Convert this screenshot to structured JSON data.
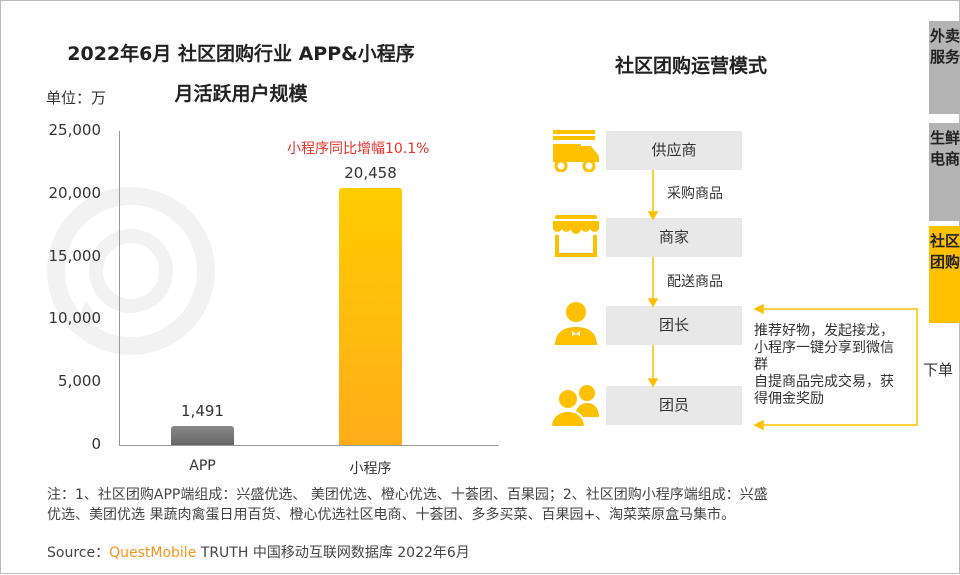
{
  "chart_data": {
    "type": "bar",
    "title": "2022年6月 社区团购行业 APP&小程序 月活跃用户规模",
    "title_lines": [
      "2022年6月 社区团购行业 APP&小程序",
      "月活跃用户规模"
    ],
    "unit_label": "单位：万",
    "categories": [
      "APP",
      "小程序"
    ],
    "values": [
      1491,
      20458
    ],
    "value_labels": [
      "1,491",
      "20,458"
    ],
    "ylim": [
      0,
      25000
    ],
    "yticks": [
      "0",
      "5,000",
      "10,000",
      "15,000",
      "20,000",
      "25,000"
    ],
    "annotation": "小程序同比增幅10.1%",
    "grid": false,
    "colors": {
      "APP": "#7a7a7a",
      "小程序": "#ffc000"
    }
  },
  "flow": {
    "title": "社区团购运营模式",
    "nodes": [
      {
        "label": "供应商",
        "icon": "truck-icon"
      },
      {
        "label": "商家",
        "icon": "store-icon"
      },
      {
        "label": "团长",
        "icon": "person-icon"
      },
      {
        "label": "团员",
        "icon": "group-icon"
      }
    ],
    "edges": [
      "采购商品",
      "配送商品"
    ],
    "feedback_text": [
      "推荐好物，发起接龙，",
      "小程序一键分享到微信",
      "群",
      "自提商品完成交易，获",
      "得佣金奖励"
    ],
    "order_label": "下单",
    "accent": "#ffc000"
  },
  "side_tabs": [
    {
      "label": "外卖服务",
      "active": false
    },
    {
      "label": "生鲜电商",
      "active": false
    },
    {
      "label": "社区团购",
      "active": true
    }
  ],
  "watermark": "QUESTMOBILE",
  "note": [
    "注：1、社区团购APP端组成：兴盛优选、 美团优选、橙心优选、十荟团、百果园；2、社区团购小程序端组成：兴盛",
    "优选、美团优选 果蔬肉禽蛋日用百货、橙心优选社区电商、十荟团、多多买菜、百果园+、淘菜菜原盒马集市。"
  ],
  "source": {
    "prefix": "Source：",
    "brand": "QuestMobile",
    "rest": " TRUTH 中国移动互联网数据库 2022年6月"
  }
}
